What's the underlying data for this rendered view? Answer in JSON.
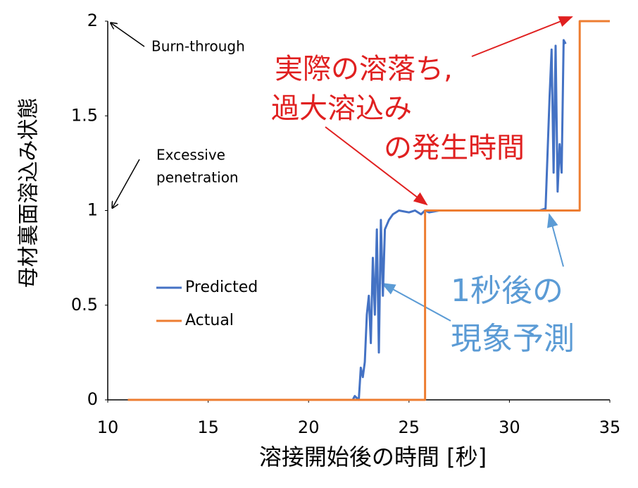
{
  "chart_data": {
    "type": "line",
    "xlabel": "溶接開始後の時間 [秒]",
    "ylabel": "母材裏面溶込み状態",
    "xlim": [
      10,
      35
    ],
    "xticks": [
      10,
      15,
      20,
      25,
      30,
      35
    ],
    "ylim": [
      0,
      2
    ],
    "yticks": [
      0,
      0.5,
      1,
      1.5,
      2
    ],
    "legend": "left",
    "series": [
      {
        "name": "Predicted",
        "color": "#4472c4",
        "x": [
          11,
          22,
          22.2,
          22.3,
          22.5,
          22.6,
          22.7,
          22.8,
          22.9,
          23.0,
          23.1,
          23.2,
          23.3,
          23.4,
          23.5,
          23.6,
          23.7,
          23.8,
          24.0,
          24.2,
          24.5,
          25.0,
          25.3,
          25.6,
          25.8,
          26.0,
          26.5,
          31.5,
          31.8,
          32.0,
          32.1,
          32.2,
          32.3,
          32.4,
          32.5,
          32.6,
          32.7,
          32.8
        ],
        "values": [
          0,
          0,
          0,
          0.02,
          0,
          0.17,
          0.12,
          0.2,
          0.45,
          0.55,
          0.3,
          0.75,
          0.45,
          0.9,
          0.25,
          0.95,
          0.55,
          0.9,
          0.95,
          0.98,
          1.0,
          0.99,
          1.0,
          0.98,
          1.0,
          0.99,
          1.0,
          1.0,
          1.01,
          1.6,
          1.85,
          1.2,
          1.87,
          1.1,
          1.35,
          1.2,
          1.9,
          1.88
        ]
      },
      {
        "name": "Actual",
        "color": "#ed7d31",
        "x": [
          11,
          25.8,
          25.8,
          33.5,
          33.5,
          35
        ],
        "values": [
          0,
          0,
          1,
          1,
          2,
          2
        ]
      }
    ],
    "annotations": [
      {
        "lines": [
          "Burn-through"
        ]
      },
      {
        "lines": [
          "Excessive",
          "penetration"
        ]
      },
      {
        "lines": [
          "実際の溶落ち,",
          "過大溶込み",
          "の発生時間"
        ],
        "color": "#e02020"
      },
      {
        "lines": [
          "1秒後の",
          "現象予測"
        ],
        "color": "#5b9bd5"
      }
    ]
  }
}
